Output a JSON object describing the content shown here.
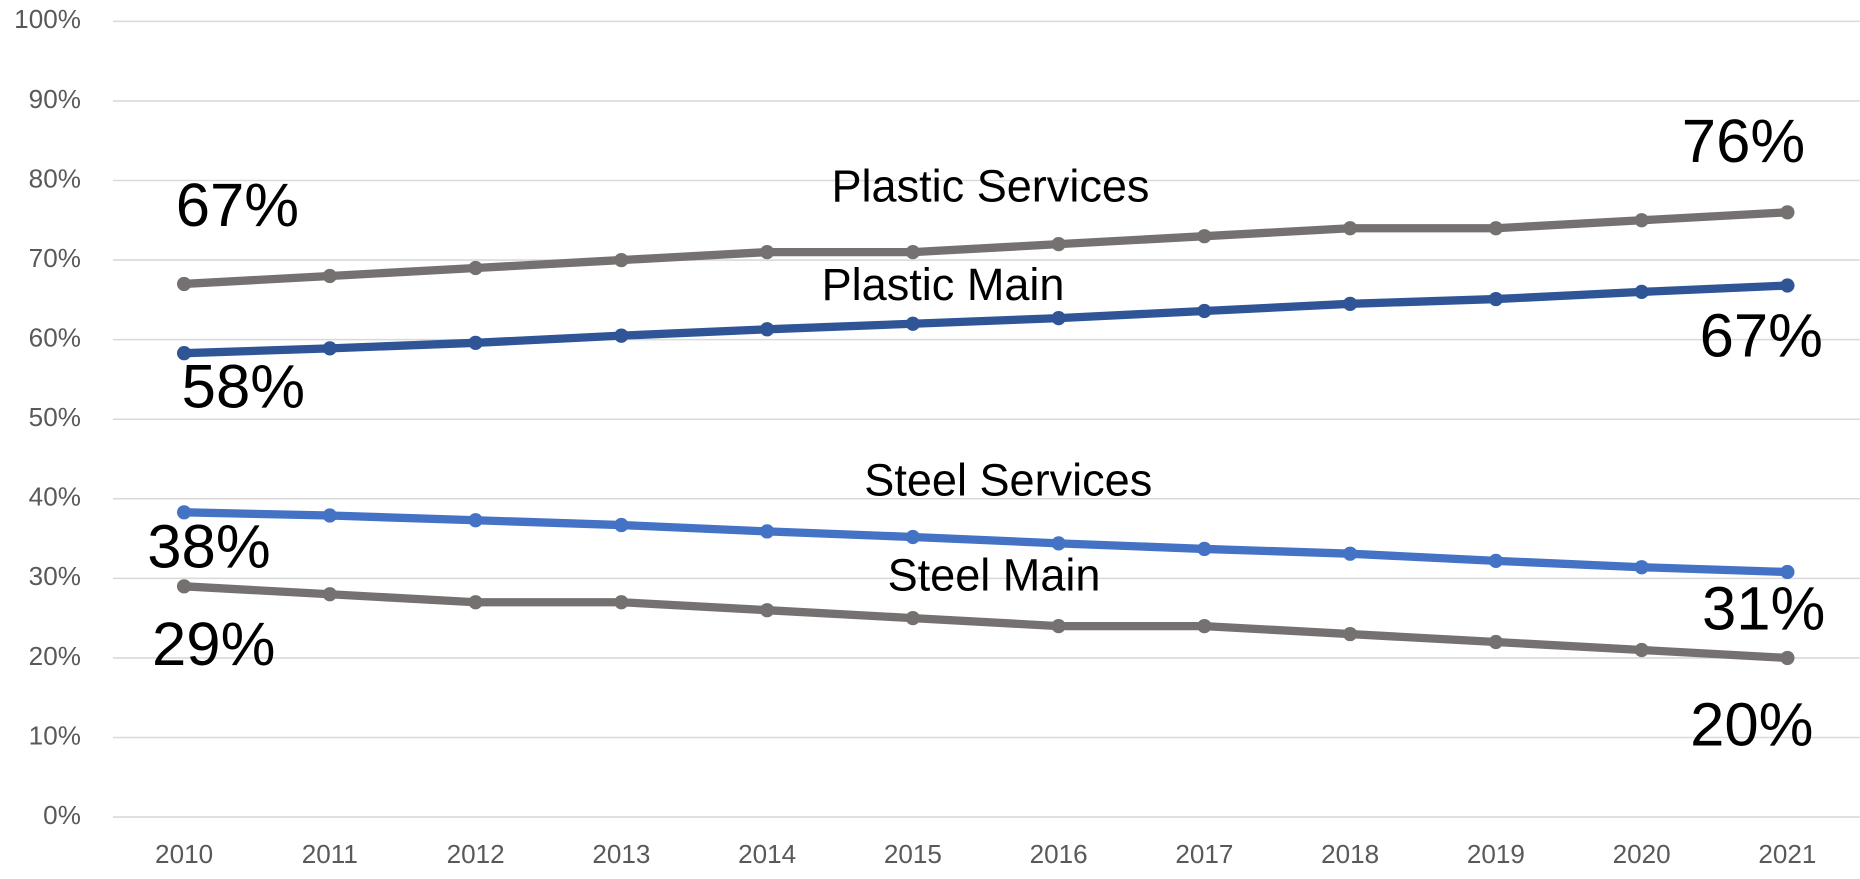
{
  "chart_data": {
    "type": "line",
    "categories": [
      "2010",
      "2011",
      "2012",
      "2013",
      "2014",
      "2015",
      "2016",
      "2017",
      "2018",
      "2019",
      "2020",
      "2021"
    ],
    "series": [
      {
        "name": "Plastic Services",
        "color": "#767171",
        "values": [
          67,
          68,
          69,
          70,
          71,
          71,
          72,
          73,
          74,
          74,
          75,
          76
        ],
        "value_labels": [
          "67%",
          null,
          null,
          null,
          null,
          null,
          null,
          null,
          null,
          null,
          null,
          "76%"
        ]
      },
      {
        "name": "Plastic Main",
        "color": "#2f5597",
        "values": [
          58.3,
          58.9,
          59.6,
          60.5,
          61.3,
          62.0,
          62.7,
          63.6,
          64.5,
          65.1,
          66.0,
          66.8
        ],
        "value_labels": [
          "58%",
          null,
          null,
          null,
          null,
          null,
          null,
          null,
          null,
          null,
          null,
          "67%"
        ]
      },
      {
        "name": "Steel Services",
        "color": "#4472c4",
        "values": [
          38.3,
          37.9,
          37.3,
          36.7,
          35.9,
          35.2,
          34.4,
          33.7,
          33.1,
          32.2,
          31.4,
          30.8
        ],
        "value_labels": [
          "38%",
          null,
          null,
          null,
          null,
          null,
          null,
          null,
          null,
          null,
          null,
          "31%"
        ]
      },
      {
        "name": "Steel Main",
        "color": "#767171",
        "values": [
          29,
          28,
          27,
          27,
          26,
          25,
          24,
          24,
          23,
          22,
          21,
          20
        ],
        "value_labels": [
          "29%",
          null,
          null,
          null,
          null,
          null,
          null,
          null,
          null,
          null,
          null,
          "20%"
        ]
      }
    ],
    "ylim": [
      0,
      100
    ],
    "yticks": [
      {
        "value": 0,
        "label": "0%"
      },
      {
        "value": 10,
        "label": "10%"
      },
      {
        "value": 20,
        "label": "20%"
      },
      {
        "value": 30,
        "label": "30%"
      },
      {
        "value": 40,
        "label": "40%"
      },
      {
        "value": 50,
        "label": "50%"
      },
      {
        "value": 60,
        "label": "60%"
      },
      {
        "value": 70,
        "label": "70%"
      },
      {
        "value": 80,
        "label": "80%"
      },
      {
        "value": 90,
        "label": "90%"
      },
      {
        "value": 100,
        "label": "100%"
      }
    ],
    "grid": true
  }
}
